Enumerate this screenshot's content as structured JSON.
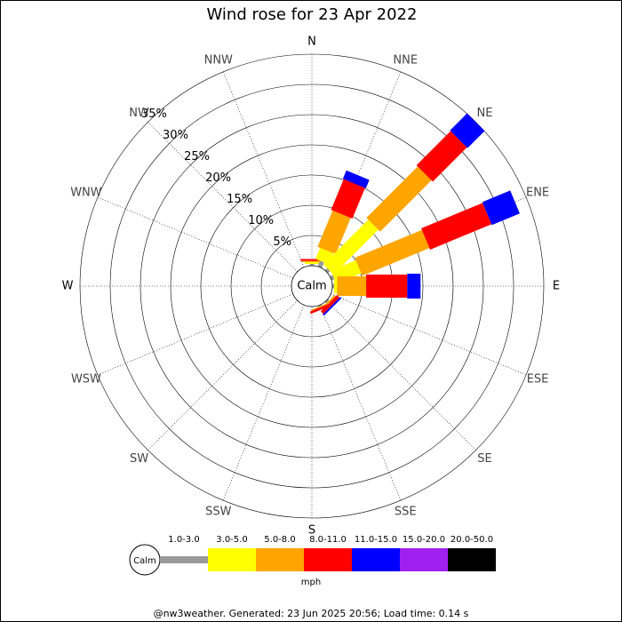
{
  "chart_data": {
    "type": "windrose",
    "title": "Wind rose for 23 Apr 2022",
    "categories": [
      "N",
      "NNE",
      "NE",
      "ENE",
      "E",
      "ESE",
      "SE",
      "SSE",
      "S",
      "SSW",
      "SW",
      "WSW",
      "W",
      "WNW",
      "NW",
      "NNW"
    ],
    "series": [
      {
        "name": "1.0-3.0",
        "color": "#999999",
        "values": [
          0.3,
          1,
          0.5,
          0.5,
          0.3,
          0,
          0.3,
          0.2,
          0,
          0,
          0,
          0,
          0,
          0,
          0,
          0
        ]
      },
      {
        "name": "3.0-5.0",
        "color": "#ffff00",
        "values": [
          0.3,
          2,
          10.5,
          4.5,
          0.5,
          0,
          0,
          0,
          0,
          0,
          0,
          0,
          0,
          0,
          0,
          0
        ]
      },
      {
        "name": "5.0-8.0",
        "color": "#ffa500",
        "values": [
          0.2,
          6.5,
          12,
          12,
          4.8,
          0,
          0.3,
          0.2,
          0,
          0,
          0,
          0,
          0,
          0,
          0,
          0
        ]
      },
      {
        "name": "8.0-11.0",
        "color": "#ff0000",
        "values": [
          0.3,
          5.5,
          8,
          11,
          6.8,
          0,
          0.6,
          0.4,
          0,
          0,
          0,
          0,
          0,
          0,
          0,
          0
        ]
      },
      {
        "name": "11.0-15.0",
        "color": "#0000ff",
        "values": [
          0,
          1.5,
          4,
          5,
          2.2,
          0,
          0.3,
          0,
          0,
          0,
          0,
          0,
          0,
          0,
          0,
          0
        ]
      },
      {
        "name": "15.0-20.0",
        "color": "#a020f0",
        "values": [
          0,
          0,
          0,
          0,
          0,
          0,
          0,
          0,
          0,
          0,
          0,
          0,
          0,
          0,
          0,
          0
        ]
      },
      {
        "name": "20.0-50.0",
        "color": "#000000",
        "values": [
          0,
          0,
          0,
          0,
          0,
          0,
          0,
          0,
          0,
          0,
          0,
          0,
          0,
          0,
          0,
          0
        ]
      }
    ],
    "rlim": [
      0,
      35
    ],
    "rticks": [
      {
        "value": 5,
        "label": "5%"
      },
      {
        "value": 10,
        "label": "10%"
      },
      {
        "value": 15,
        "label": "15%"
      },
      {
        "value": 20,
        "label": "20%"
      },
      {
        "value": 25,
        "label": "25%"
      },
      {
        "value": 30,
        "label": "30%"
      },
      {
        "value": 35,
        "label": "35%"
      }
    ],
    "calm_label": "Calm",
    "unit_label": "mph",
    "footer": "@nw3weather. Generated: 23 Jun 2025 20:56; Load time: 0.14 s"
  }
}
